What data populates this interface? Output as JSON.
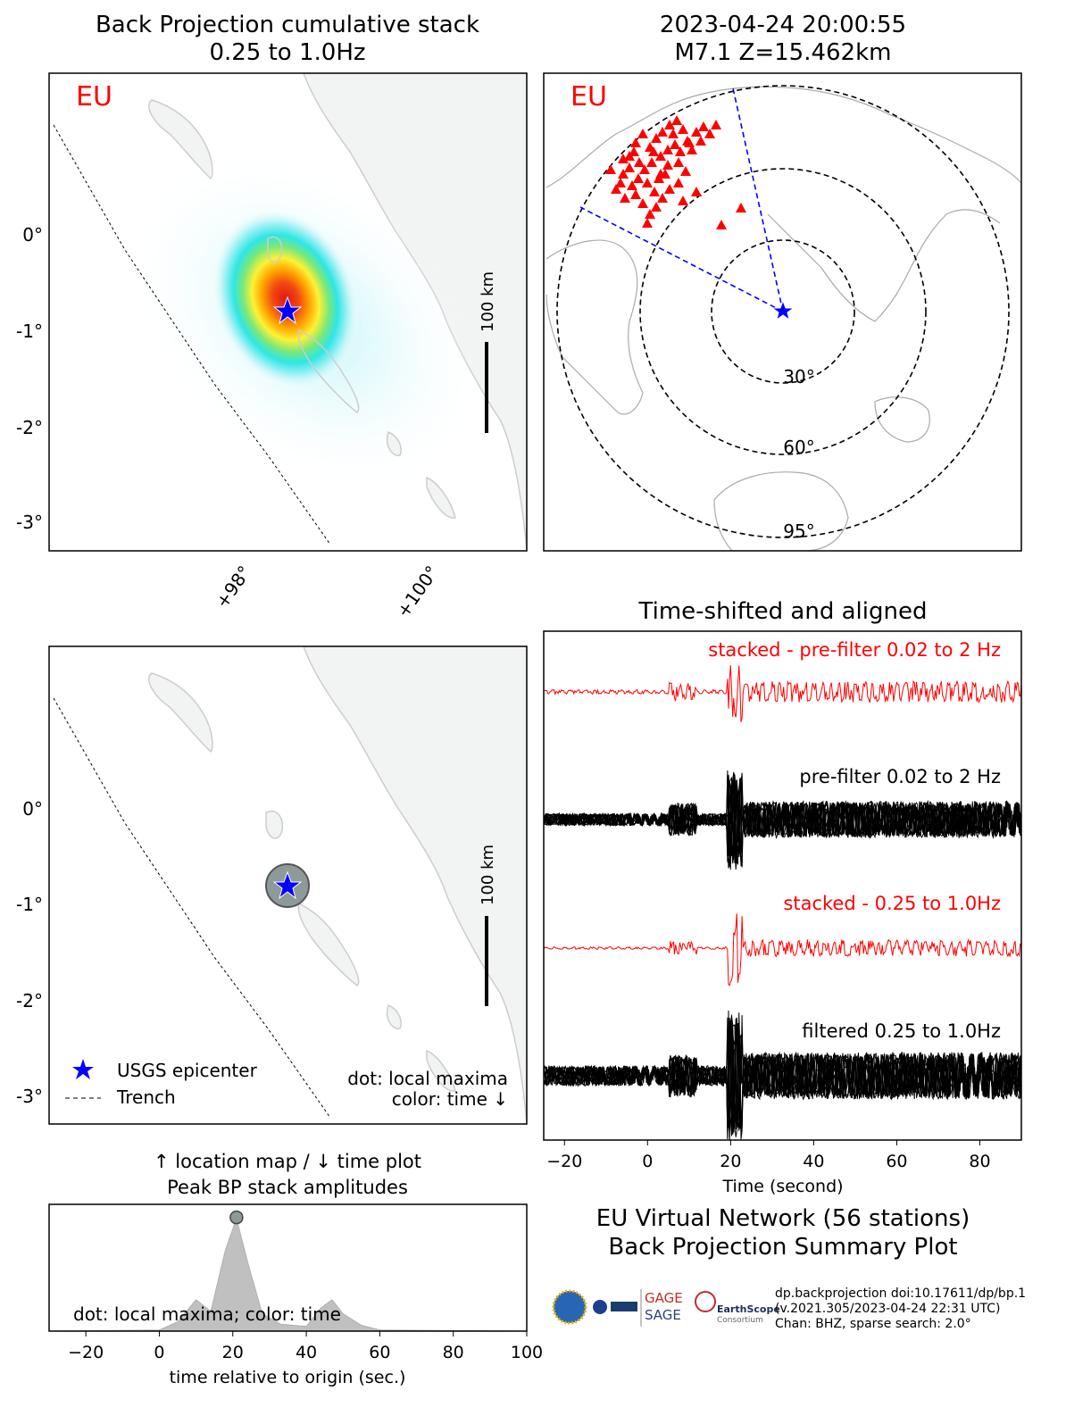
{
  "titles": {
    "bp_title_line1": "Back Projection cumulative stack",
    "bp_title_line2": "0.25 to 1.0Hz",
    "event_line1": "2023-04-24 20:00:55",
    "event_line2": "M7.1 Z=15.462km",
    "traces_title": "Time-shifted and aligned",
    "peak_line1": "↑ location map / ↓ time plot",
    "peak_line2": "Peak BP stack amplitudes",
    "summary_line1": "EU Virtual Network (56 stations)",
    "summary_line2": "Back Projection Summary Plot"
  },
  "maps": {
    "network_label": "EU",
    "lat_ticks": [
      "0°",
      "-1°",
      "-2°",
      "-3°"
    ],
    "lon_ticks": [
      "+98°",
      "+100°"
    ],
    "scale_label": "100 km",
    "distance_rings": [
      "30°",
      "60°",
      "95°"
    ],
    "legend": {
      "epicenter": "USGS epicenter",
      "trench": "Trench"
    },
    "note_line1": "dot: local maxima",
    "note_line2": "color: time ↓"
  },
  "traces": {
    "labels": [
      {
        "text": "stacked - pre-filter 0.02 to 2 Hz",
        "color": "#ff0000"
      },
      {
        "text": "pre-filter 0.02 to 2 Hz",
        "color": "#000000"
      },
      {
        "text": "stacked - 0.25 to 1.0Hz",
        "color": "#ff0000"
      },
      {
        "text": "filtered 0.25 to 1.0Hz",
        "color": "#000000"
      }
    ],
    "xlabel": "Time (second)",
    "xticks": [
      "−20",
      "0",
      "20",
      "40",
      "60",
      "80"
    ],
    "xlim": [
      -25,
      90
    ]
  },
  "peak": {
    "annotation": "dot: local maxima; color: time",
    "xlabel": "time relative to origin (sec.)",
    "xticks": [
      "−20",
      "0",
      "20",
      "40",
      "60",
      "80",
      "100"
    ],
    "xlim": [
      -30,
      100
    ]
  },
  "footer": {
    "line1": "dp.backprojection doi:10.17611/dp/bp.1",
    "line2": "(v.2021.305/2023-04-24 22:31 UTC)",
    "line3": "Chan: BHZ, sparse search: 2.0°"
  },
  "logos": {
    "gage": "GAGE",
    "sage": "SAGE",
    "earthscope": "EarthScope",
    "consortium": "Consortium"
  },
  "colors": {
    "stack_red": "#ff0000",
    "star_blue": "#0000ff",
    "land": "#f2f3f3",
    "peak_fill": "#c0c0c0"
  },
  "chart_data": [
    {
      "type": "heatmap",
      "title": "Back Projection cumulative stack 0.25 to 1.0Hz",
      "lat_ticks": [
        0,
        -1,
        -2,
        -3
      ],
      "lon_ticks": [
        98,
        100
      ],
      "epicenter": {
        "lon": 98.3,
        "lat": -0.8
      },
      "peak_energy": {
        "lon": 98.3,
        "lat": -0.8
      },
      "scale_km": 100
    },
    {
      "type": "scatter",
      "title": "2023-04-24 20:00:55 M7.1 Z=15.462km",
      "stations": 56,
      "distance_rings_deg": [
        30,
        60,
        95
      ]
    },
    {
      "type": "line",
      "title": "Time-shifted and aligned",
      "xlabel": "Time (second)",
      "xlim": [
        -25,
        90
      ],
      "series": [
        {
          "name": "stacked - pre-filter 0.02 to 2 Hz"
        },
        {
          "name": "pre-filter 0.02 to 2 Hz"
        },
        {
          "name": "stacked - 0.25 to 1.0Hz"
        },
        {
          "name": "filtered 0.25 to 1.0Hz"
        }
      ]
    },
    {
      "type": "area",
      "title": "↑ location map / ↓ time plot Peak BP stack amplitudes",
      "xlabel": "time relative to origin (sec.)",
      "xlim": [
        -30,
        100
      ],
      "x": [
        -30,
        0,
        5,
        10,
        14,
        18,
        21,
        24,
        28,
        33,
        40,
        44,
        47,
        50,
        55,
        60,
        100
      ],
      "values": [
        0,
        0.01,
        0.08,
        0.27,
        0.17,
        0.7,
        0.97,
        0.6,
        0.15,
        0.06,
        0.04,
        0.2,
        0.27,
        0.15,
        0.05,
        0.01,
        0
      ],
      "local_maxima": [
        {
          "x": 21,
          "y": 0.98
        }
      ]
    }
  ]
}
